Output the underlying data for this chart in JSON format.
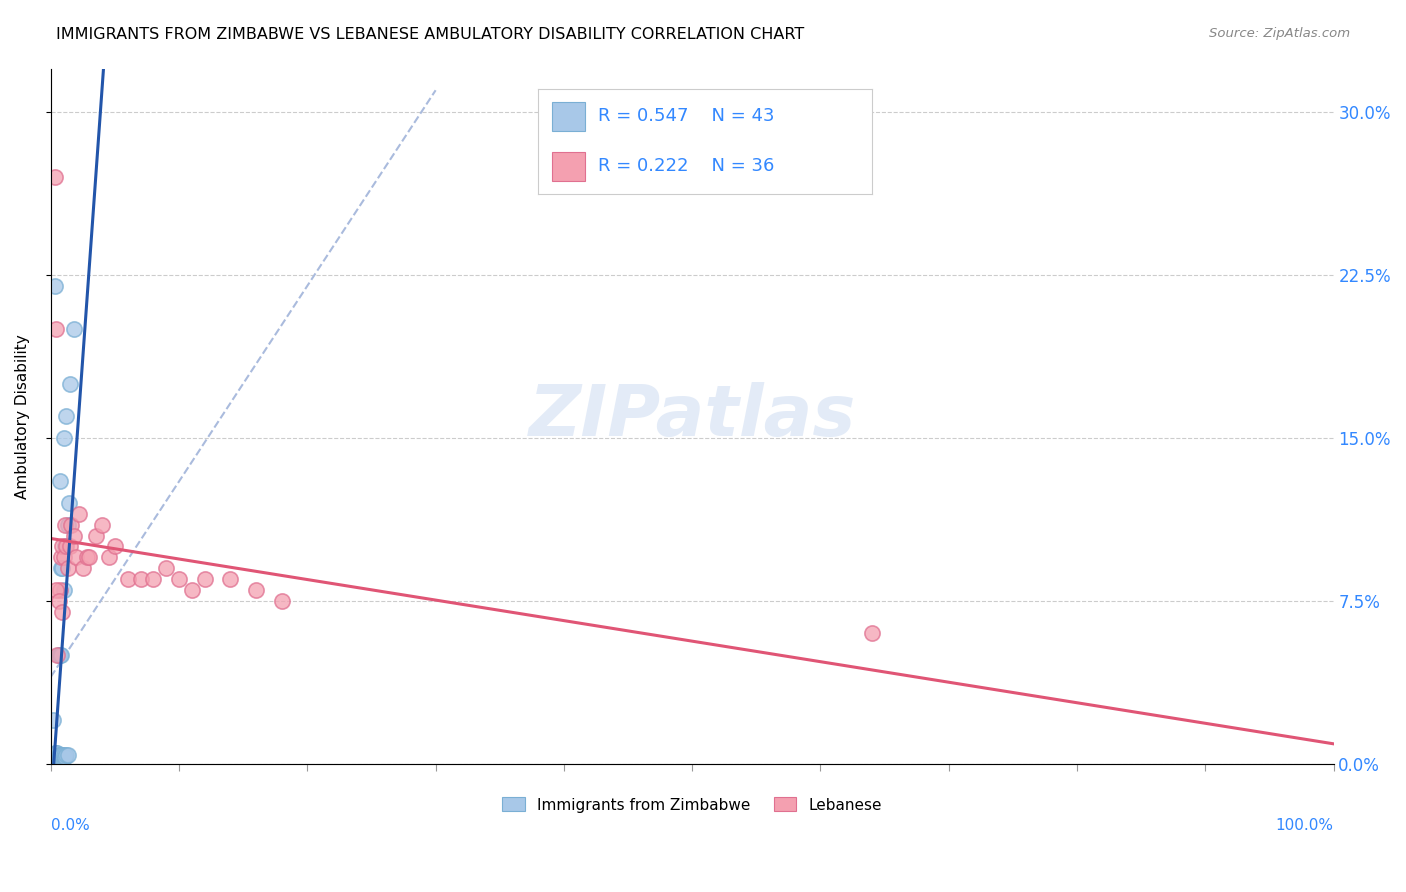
{
  "title": "IMMIGRANTS FROM ZIMBABWE VS LEBANESE AMBULATORY DISABILITY CORRELATION CHART",
  "source": "Source: ZipAtlas.com",
  "ylabel": "Ambulatory Disability",
  "legend_label1": "Immigrants from Zimbabwe",
  "legend_label2": "Lebanese",
  "R1": "0.547",
  "N1": "43",
  "R2": "0.222",
  "N2": "36",
  "color_blue": "#a8c8e8",
  "color_blue_edge": "#7aafd4",
  "color_pink": "#f4a0b0",
  "color_pink_edge": "#e07090",
  "color_blue_line": "#2255aa",
  "color_pink_line": "#e05575",
  "color_text_blue": "#3388ff",
  "color_dash": "#aabbdd",
  "background": "#ffffff",
  "ytick_values": [
    0.0,
    0.075,
    0.15,
    0.225,
    0.3
  ],
  "xlim": [
    0.0,
    1.0
  ],
  "ylim": [
    0.0,
    0.32
  ],
  "zim_x": [
    0.001,
    0.002,
    0.002,
    0.003,
    0.003,
    0.003,
    0.004,
    0.004,
    0.004,
    0.005,
    0.005,
    0.005,
    0.005,
    0.006,
    0.006,
    0.006,
    0.006,
    0.007,
    0.007,
    0.007,
    0.007,
    0.007,
    0.008,
    0.008,
    0.008,
    0.008,
    0.009,
    0.009,
    0.009,
    0.01,
    0.01,
    0.01,
    0.01,
    0.011,
    0.011,
    0.012,
    0.012,
    0.013,
    0.013,
    0.014,
    0.015,
    0.018,
    0.003
  ],
  "zim_y": [
    0.002,
    0.003,
    0.02,
    0.003,
    0.005,
    0.003,
    0.003,
    0.004,
    0.005,
    0.003,
    0.003,
    0.004,
    0.005,
    0.003,
    0.003,
    0.004,
    0.05,
    0.003,
    0.003,
    0.004,
    0.05,
    0.13,
    0.003,
    0.004,
    0.05,
    0.09,
    0.003,
    0.004,
    0.09,
    0.003,
    0.004,
    0.08,
    0.15,
    0.003,
    0.1,
    0.004,
    0.16,
    0.004,
    0.11,
    0.12,
    0.175,
    0.2,
    0.22
  ],
  "leb_x": [
    0.003,
    0.005,
    0.007,
    0.008,
    0.009,
    0.01,
    0.011,
    0.012,
    0.013,
    0.015,
    0.016,
    0.018,
    0.02,
    0.022,
    0.025,
    0.028,
    0.03,
    0.035,
    0.04,
    0.045,
    0.05,
    0.06,
    0.07,
    0.08,
    0.09,
    0.1,
    0.11,
    0.12,
    0.14,
    0.16,
    0.18,
    0.64,
    0.004,
    0.006,
    0.009,
    0.004
  ],
  "leb_y": [
    0.27,
    0.05,
    0.08,
    0.095,
    0.1,
    0.095,
    0.11,
    0.1,
    0.09,
    0.1,
    0.11,
    0.105,
    0.095,
    0.115,
    0.09,
    0.095,
    0.095,
    0.105,
    0.11,
    0.095,
    0.1,
    0.085,
    0.085,
    0.085,
    0.09,
    0.085,
    0.08,
    0.085,
    0.085,
    0.08,
    0.075,
    0.06,
    0.08,
    0.075,
    0.07,
    0.2
  ]
}
